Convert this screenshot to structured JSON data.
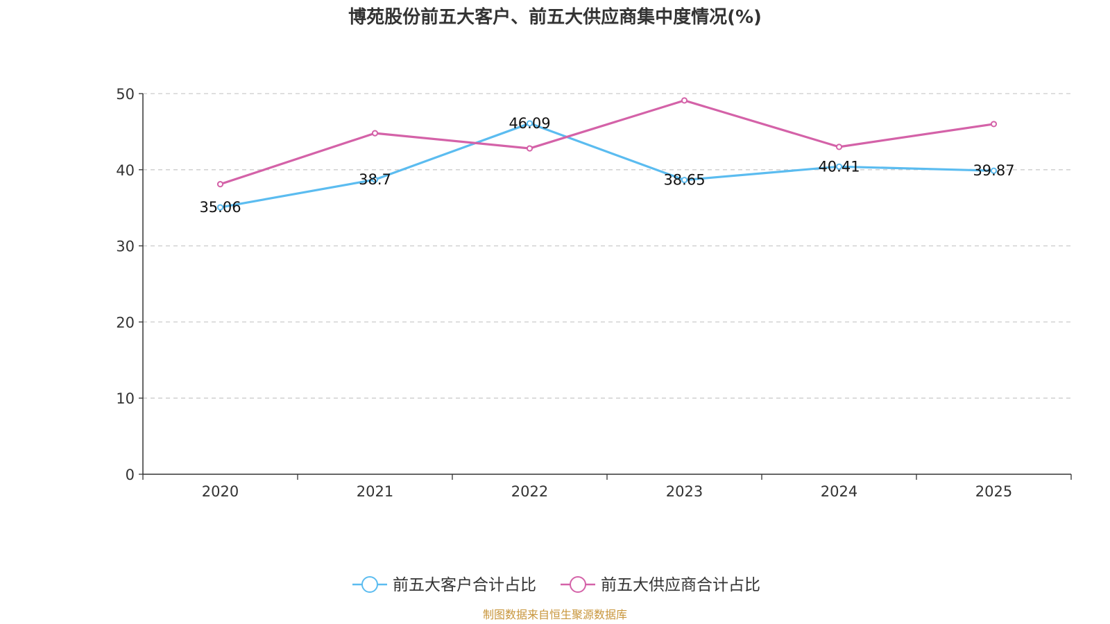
{
  "chart_data": {
    "type": "line",
    "title": "博苑股份前五大客户、前五大供应商集中度情况(%)",
    "categories": [
      "2020",
      "2021",
      "2022",
      "2023",
      "2024",
      "2025"
    ],
    "ylim": [
      0,
      50
    ],
    "yticks": [
      0,
      10,
      20,
      30,
      40,
      50
    ],
    "grid": true,
    "legend_position": "bottom",
    "series": [
      {
        "name": "前五大客户合计占比",
        "color": "#5bbcf0",
        "values": [
          35.06,
          38.7,
          46.09,
          38.65,
          40.41,
          39.87
        ],
        "labels": [
          "35.06",
          "38.7",
          "46.09",
          "38.65",
          "40.41",
          "39.87"
        ]
      },
      {
        "name": "前五大供应商合计占比",
        "color": "#d462a8",
        "values": [
          38.1,
          44.8,
          42.8,
          49.1,
          43.0,
          46.0
        ]
      }
    ],
    "source": "制图数据来自恒生聚源数据库",
    "source_color": "#c8963c"
  }
}
